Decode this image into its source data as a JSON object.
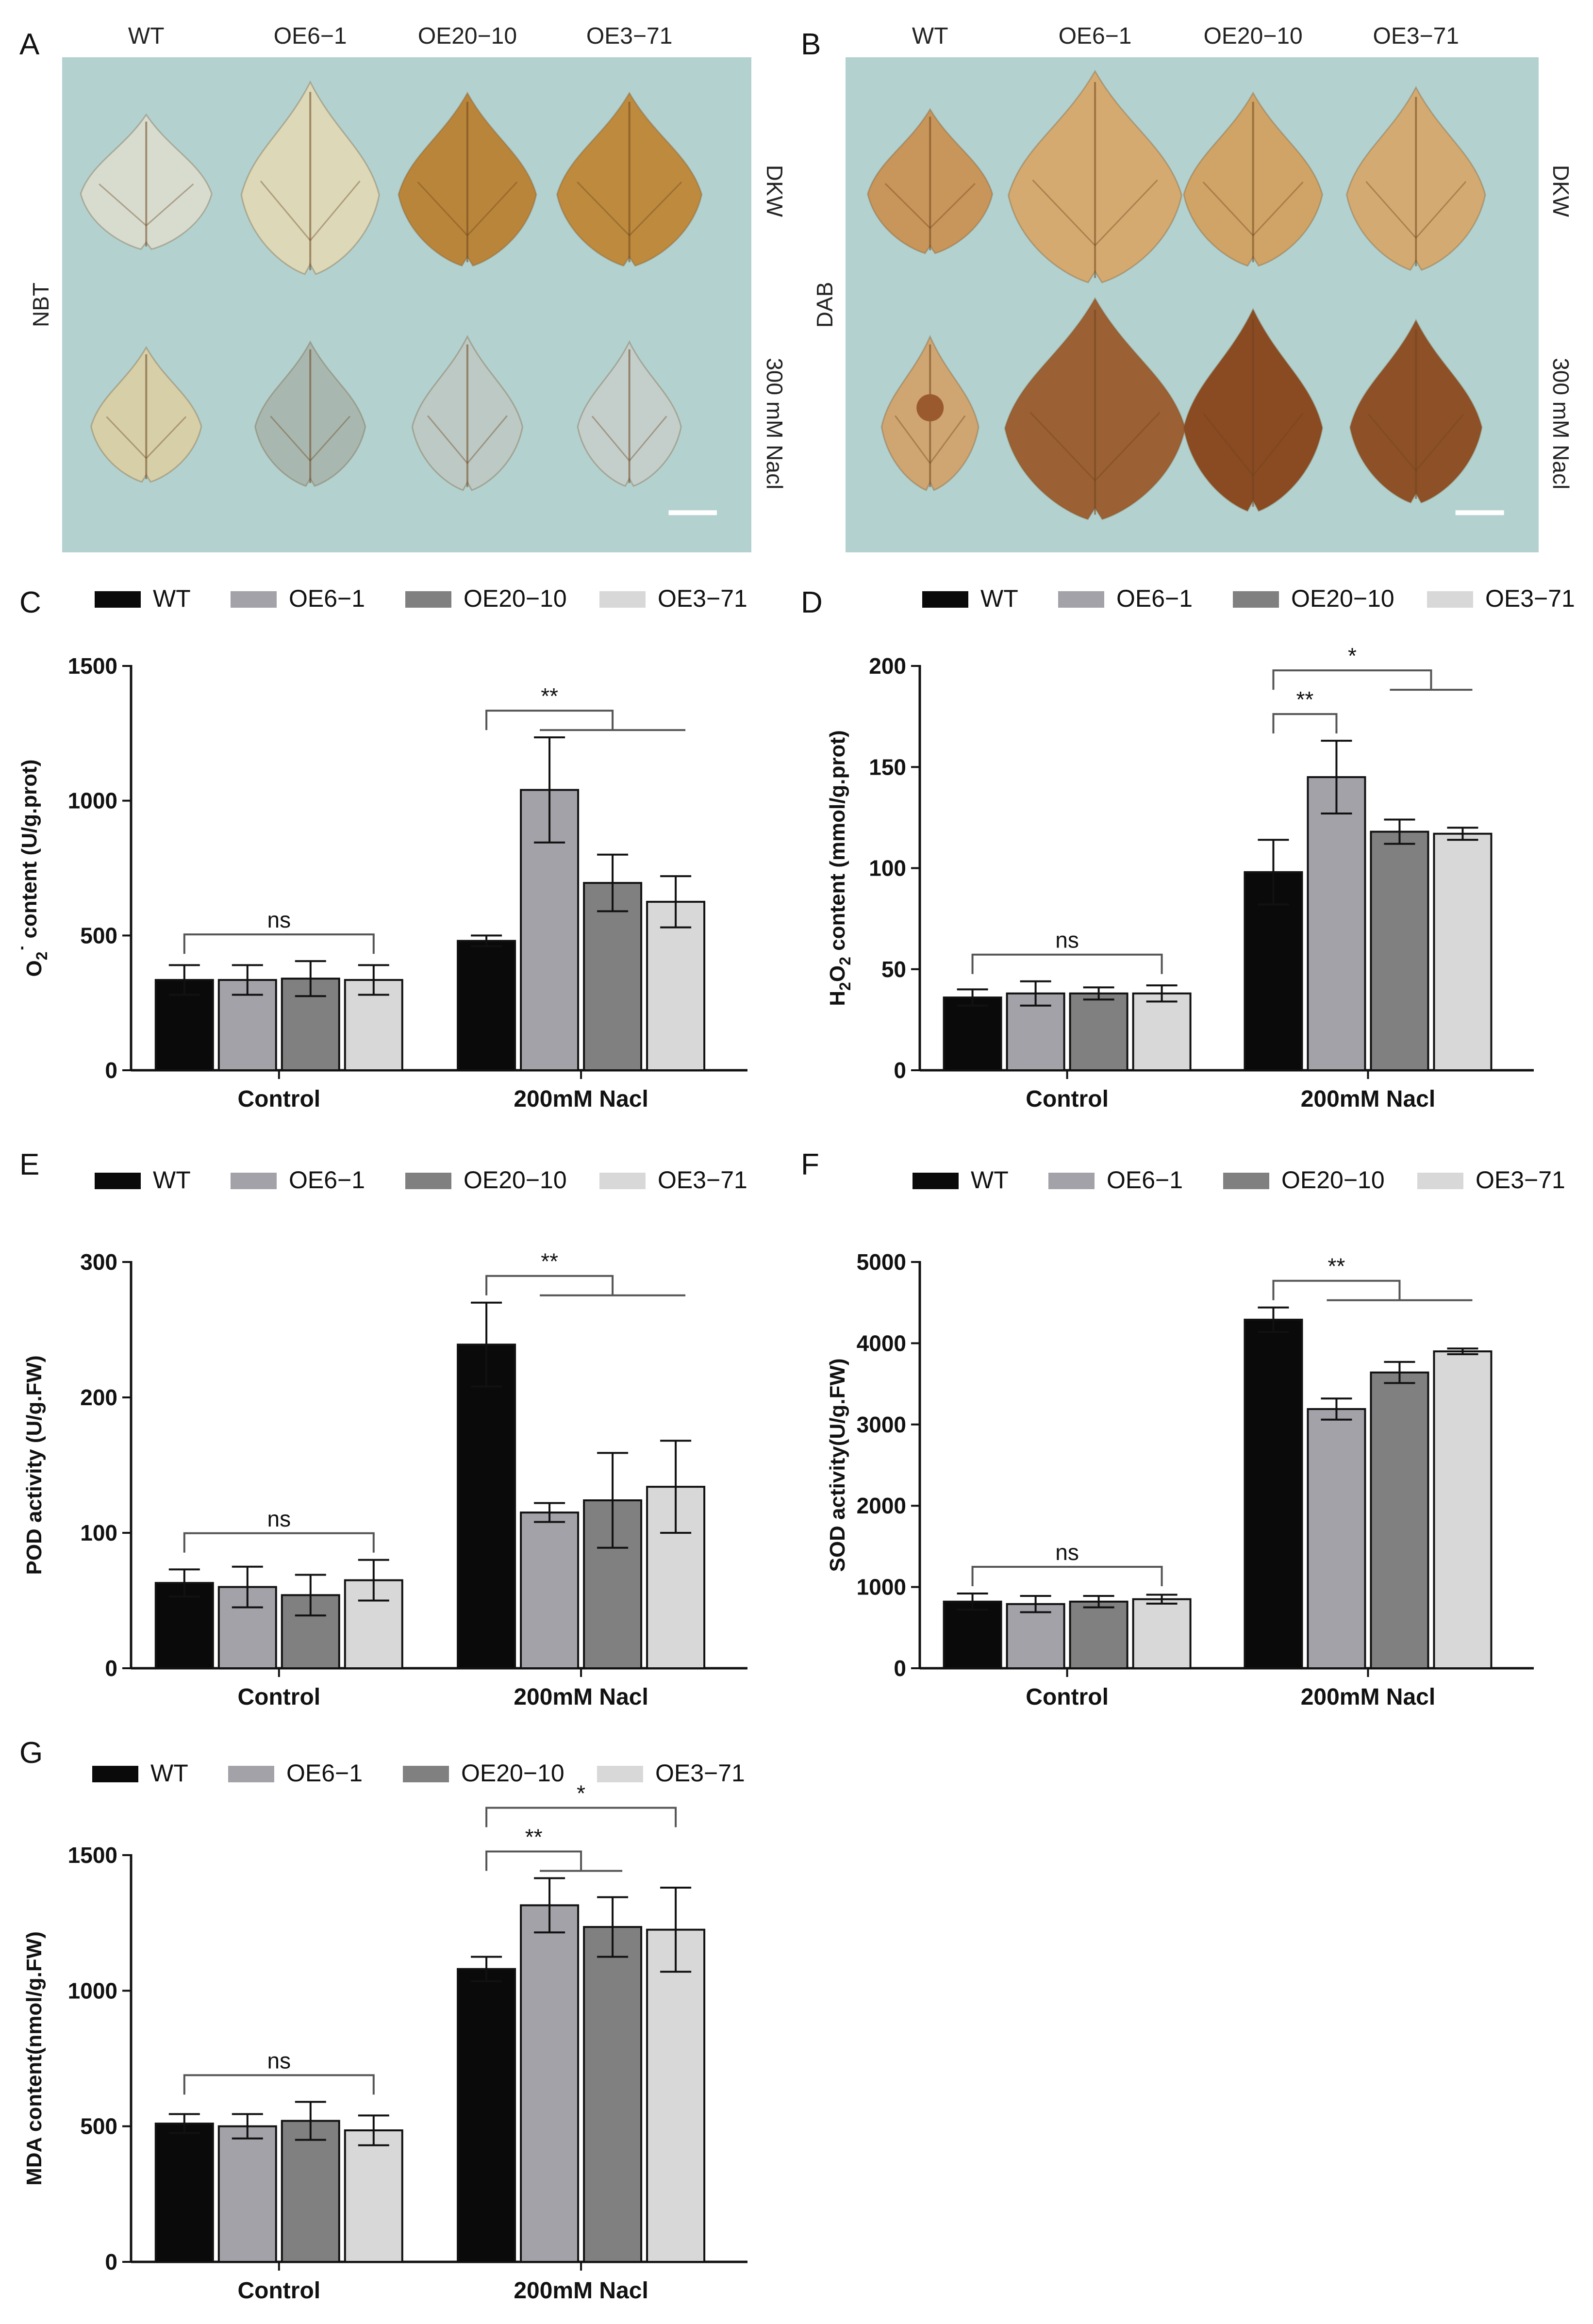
{
  "photo_panels": [
    {
      "letter": "A",
      "stain": "NBT",
      "headers": [
        "WT",
        "OE6−1",
        "OE20−10",
        "OE3−71"
      ],
      "rows": [
        "DKW",
        "300 mM Nacl"
      ],
      "leaf_colors": [
        [
          "#d8dccf",
          "#dcd8b8",
          "#b9853a",
          "#bd8a3e"
        ],
        [
          "#d6cfa8",
          "#a8b8b0",
          "#bcc9c4",
          "#c4cfcc"
        ]
      ]
    },
    {
      "letter": "B",
      "stain": "DAB",
      "headers": [
        "WT",
        "OE6−1",
        "OE20−10",
        "OE3−71"
      ],
      "rows": [
        "DKW",
        "300 mM Nacl"
      ],
      "leaf_colors": [
        [
          "#c8955a",
          "#d4aa70",
          "#d0a466",
          "#d3ab72"
        ],
        [
          "#cfa571",
          "#9b6033",
          "#8a4a22",
          "#8e5026"
        ]
      ]
    }
  ],
  "legend": [
    "WT",
    "OE6−1",
    "OE20−10",
    "OE3−71"
  ],
  "series_colors": [
    "#0a0a0a",
    "#a2a2a8",
    "#808080",
    "#d8d8d8"
  ],
  "chart_data": [
    {
      "letter": "C",
      "type": "bar",
      "ylabel": "O2˙⁻ content (U/g.prot)",
      "ylabel_parts": [
        "O",
        "2",
        "˙",
        " content (U/g.prot)"
      ],
      "categories": [
        "Control",
        "200mM Nacl"
      ],
      "ylim": [
        0,
        1500
      ],
      "yticks": [
        0,
        500,
        1000,
        1500
      ],
      "series": [
        {
          "name": "WT",
          "values": [
            335,
            480
          ],
          "errors": [
            55,
            20
          ]
        },
        {
          "name": "OE6−1",
          "values": [
            335,
            1040
          ],
          "errors": [
            55,
            195
          ]
        },
        {
          "name": "OE20−10",
          "values": [
            340,
            695
          ],
          "errors": [
            65,
            105
          ]
        },
        {
          "name": "OE3−71",
          "values": [
            335,
            625
          ],
          "errors": [
            55,
            95
          ]
        }
      ],
      "significance": [
        {
          "group": 0,
          "label": "ns",
          "type": "span",
          "from": 0,
          "to": 3
        },
        {
          "group": 1,
          "label": "**",
          "type": "fork",
          "from": 0,
          "to": [
            1,
            3
          ]
        }
      ]
    },
    {
      "letter": "D",
      "type": "bar",
      "ylabel": "H2O2 content (mmol/g.prot)",
      "ylabel_parts": [
        "H",
        "2",
        "O",
        "2",
        " content (mmol/g.prot)"
      ],
      "categories": [
        "Control",
        "200mM Nacl"
      ],
      "ylim": [
        0,
        200
      ],
      "yticks": [
        0,
        50,
        100,
        150,
        200
      ],
      "series": [
        {
          "name": "WT",
          "values": [
            36,
            98
          ],
          "errors": [
            4,
            16
          ]
        },
        {
          "name": "OE6−1",
          "values": [
            38,
            145
          ],
          "errors": [
            6,
            18
          ]
        },
        {
          "name": "OE20−10",
          "values": [
            38,
            118
          ],
          "errors": [
            3,
            6
          ]
        },
        {
          "name": "OE3−71",
          "values": [
            38,
            117
          ],
          "errors": [
            4,
            3
          ]
        }
      ],
      "significance": [
        {
          "group": 0,
          "label": "ns",
          "type": "span",
          "from": 0,
          "to": 3
        },
        {
          "group": 1,
          "label": "**",
          "type": "pair",
          "from": 0,
          "to": 1
        },
        {
          "group": 1,
          "label": "*",
          "type": "fork",
          "from": 0,
          "to": [
            2,
            3
          ],
          "level": 2
        }
      ]
    },
    {
      "letter": "E",
      "type": "bar",
      "ylabel": "POD activity (U/g.FW)",
      "categories": [
        "Control",
        "200mM Nacl"
      ],
      "ylim": [
        0,
        300
      ],
      "yticks": [
        0,
        100,
        200,
        300
      ],
      "series": [
        {
          "name": "WT",
          "values": [
            63,
            239
          ],
          "errors": [
            10,
            31
          ]
        },
        {
          "name": "OE6−1",
          "values": [
            60,
            115
          ],
          "errors": [
            15,
            7
          ]
        },
        {
          "name": "OE20−10",
          "values": [
            54,
            124
          ],
          "errors": [
            15,
            35
          ]
        },
        {
          "name": "OE3−71",
          "values": [
            65,
            134
          ],
          "errors": [
            15,
            34
          ]
        }
      ],
      "significance": [
        {
          "group": 0,
          "label": "ns",
          "type": "span",
          "from": 0,
          "to": 3
        },
        {
          "group": 1,
          "label": "**",
          "type": "fork",
          "from": 0,
          "to": [
            1,
            3
          ]
        }
      ]
    },
    {
      "letter": "F",
      "type": "bar",
      "ylabel": "SOD activity(U/g.FW)",
      "categories": [
        "Control",
        "200mM Nacl"
      ],
      "ylim": [
        0,
        5000
      ],
      "yticks": [
        0,
        1000,
        2000,
        3000,
        4000,
        5000
      ],
      "series": [
        {
          "name": "WT",
          "values": [
            820,
            4290
          ],
          "errors": [
            100,
            150
          ]
        },
        {
          "name": "OE6−1",
          "values": [
            790,
            3190
          ],
          "errors": [
            100,
            130
          ]
        },
        {
          "name": "OE20−10",
          "values": [
            820,
            3640
          ],
          "errors": [
            70,
            130
          ]
        },
        {
          "name": "OE3−71",
          "values": [
            850,
            3900
          ],
          "errors": [
            55,
            35
          ]
        }
      ],
      "significance": [
        {
          "group": 0,
          "label": "ns",
          "type": "span",
          "from": 0,
          "to": 3
        },
        {
          "group": 1,
          "label": "**",
          "type": "fork",
          "from": 0,
          "to": [
            1,
            3
          ]
        }
      ]
    },
    {
      "letter": "G",
      "type": "bar",
      "ylabel": "MDA content(nmol/g.FW)",
      "categories": [
        "Control",
        "200mM Nacl"
      ],
      "ylim": [
        0,
        1500
      ],
      "yticks": [
        0,
        500,
        1000,
        1500
      ],
      "series": [
        {
          "name": "WT",
          "values": [
            510,
            1080
          ],
          "errors": [
            35,
            45
          ]
        },
        {
          "name": "OE6−1",
          "values": [
            500,
            1315
          ],
          "errors": [
            45,
            100
          ]
        },
        {
          "name": "OE20−10",
          "values": [
            520,
            1235
          ],
          "errors": [
            70,
            110
          ]
        },
        {
          "name": "OE3−71",
          "values": [
            485,
            1225
          ],
          "errors": [
            55,
            155
          ]
        }
      ],
      "significance": [
        {
          "group": 0,
          "label": "ns",
          "type": "span",
          "from": 0,
          "to": 3
        },
        {
          "group": 1,
          "label": "**",
          "type": "fork",
          "from": 0,
          "to": [
            1,
            2
          ]
        },
        {
          "group": 1,
          "label": "*",
          "type": "span",
          "from": 0,
          "to": 3,
          "level": 2
        }
      ]
    }
  ]
}
